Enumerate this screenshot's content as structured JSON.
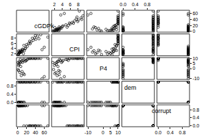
{
  "chart_data": {
    "type": "scatter_matrix",
    "marker": "circle-open",
    "color": "#000000",
    "grid": false,
    "dimensions": [
      {
        "name": "cGDPk",
        "lim": [
          -2.7,
          70.7
        ],
        "ticks": [
          0,
          20,
          40,
          60
        ],
        "values": [
          45,
          38,
          52,
          41,
          35,
          30,
          68,
          28,
          22,
          18,
          12,
          9,
          6,
          4,
          3,
          2,
          1,
          5,
          8,
          55,
          60,
          15,
          10,
          7,
          14,
          25,
          33,
          40,
          11,
          3,
          2,
          17,
          20,
          1,
          6,
          48,
          13,
          27
        ]
      },
      {
        "name": "CPI",
        "lim": [
          1.3,
          9.5
        ],
        "ticks": [
          2,
          4,
          6,
          8
        ],
        "values": [
          8.7,
          8.0,
          9.2,
          7.5,
          7.1,
          6.5,
          8.3,
          5.8,
          4.9,
          4.2,
          3.5,
          3.0,
          2.6,
          2.8,
          2.2,
          2.0,
          1.8,
          2.4,
          2.7,
          3.6,
          4.5,
          3.2,
          3.4,
          2.9,
          5.2,
          6.0,
          7.9,
          8.9,
          3.8,
          2.5,
          3.1,
          4.0,
          5.5,
          1.6,
          3.3,
          7.7,
          2.1,
          6.8
        ]
      },
      {
        "name": "P4",
        "lim": [
          -10.8,
          10.8
        ],
        "ticks": [
          -10,
          0,
          5,
          10
        ],
        "values": [
          10,
          10,
          10,
          10,
          10,
          10,
          10,
          10,
          9,
          8,
          8,
          7,
          6,
          7,
          5,
          3,
          -1,
          -4,
          -7,
          -10,
          -8,
          -6,
          -3,
          2,
          9,
          10,
          10,
          10,
          6,
          4,
          -2,
          7,
          8,
          6,
          9,
          10,
          -5,
          10
        ]
      },
      {
        "name": "dem",
        "lim": [
          -0.04,
          1.04
        ],
        "ticks": [
          {
            "value": 0,
            "label": "0.0"
          },
          {
            "value": 0.4,
            "label": "0.4"
          },
          {
            "value": 0.8,
            "label": "0.8"
          }
        ],
        "values": [
          1,
          1,
          1,
          1,
          1,
          1,
          1,
          1,
          1,
          1,
          1,
          1,
          1,
          1,
          0,
          0,
          0,
          0,
          0,
          0,
          0,
          0,
          0,
          0,
          1,
          1,
          1,
          1,
          1,
          0,
          0,
          1,
          1,
          1,
          1,
          1,
          0,
          1
        ]
      },
      {
        "name": "corrupt",
        "lim": [
          -0.04,
          1.04
        ],
        "ticks": [
          {
            "value": 0,
            "label": "0.0"
          },
          {
            "value": 0.4,
            "label": "0.4"
          },
          {
            "value": 0.8,
            "label": "0.8"
          }
        ],
        "values": [
          0,
          0,
          0,
          0,
          0,
          0,
          0,
          0,
          1,
          1,
          1,
          1,
          1,
          1,
          1,
          1,
          1,
          1,
          1,
          1,
          1,
          1,
          1,
          1,
          0,
          0,
          0,
          0,
          1,
          1,
          1,
          1,
          0,
          1,
          1,
          0,
          1,
          0
        ]
      }
    ]
  }
}
